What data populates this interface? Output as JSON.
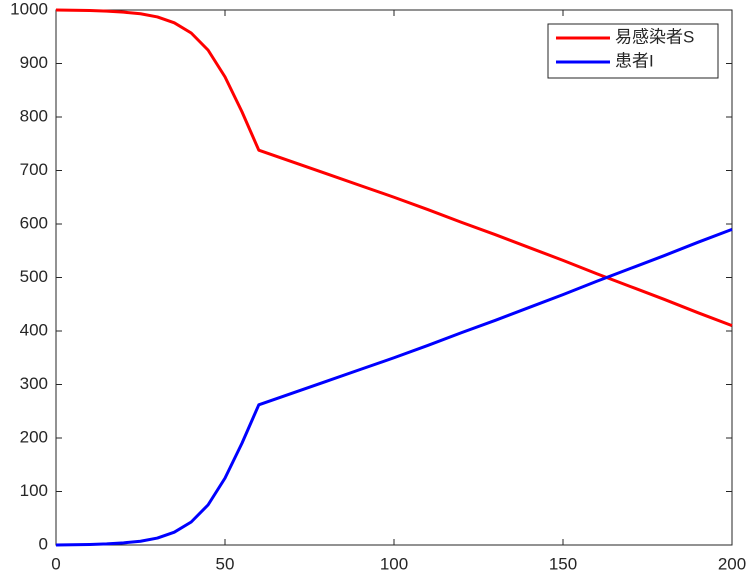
{
  "chart_data": {
    "type": "line",
    "x": [
      0,
      5,
      10,
      15,
      20,
      25,
      30,
      35,
      40,
      45,
      50,
      55,
      60,
      70,
      80,
      90,
      100,
      110,
      120,
      130,
      140,
      150,
      160,
      170,
      180,
      190,
      200
    ],
    "series": [
      {
        "name": "易感染者S",
        "color": "#ff0000",
        "values": [
          1000,
          999.5,
          999,
          998,
          996,
          993,
          987,
          976,
          957,
          925,
          875,
          810,
          738,
          716,
          694,
          672,
          650,
          627,
          603,
          580,
          556,
          532,
          507,
          483,
          459,
          434,
          410
        ]
      },
      {
        "name": "患者I",
        "color": "#0000ff",
        "values": [
          0,
          0.5,
          1,
          2,
          4,
          7,
          13,
          24,
          43,
          75,
          125,
          190,
          262,
          284,
          306,
          328,
          350,
          373,
          397,
          420,
          444,
          468,
          493,
          517,
          541,
          566,
          590
        ]
      }
    ],
    "xlim": [
      0,
      200
    ],
    "xticks": [
      0,
      50,
      100,
      150,
      200
    ],
    "ylim": [
      0,
      1000
    ],
    "yticks": [
      0,
      100,
      200,
      300,
      400,
      500,
      600,
      700,
      800,
      900,
      1000
    ],
    "grid": false,
    "legend": "top-right"
  }
}
